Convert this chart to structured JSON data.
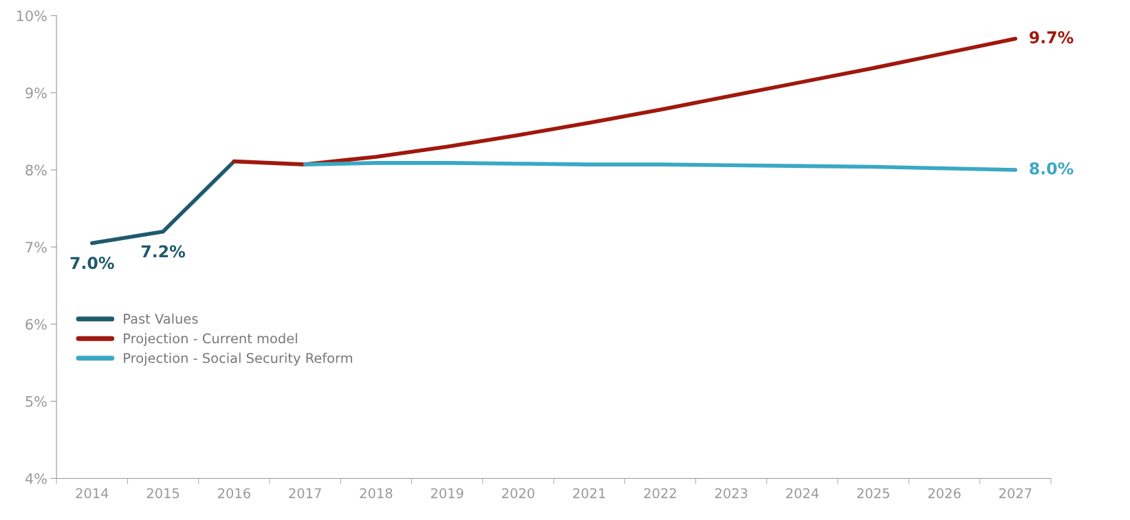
{
  "chart_data": {
    "type": "line",
    "categories": [
      "2014",
      "2015",
      "2016",
      "2017",
      "2018",
      "2019",
      "2020",
      "2021",
      "2022",
      "2023",
      "2024",
      "2025",
      "2026",
      "2027"
    ],
    "series": [
      {
        "name": "Past Values",
        "color": "#1f5a6e",
        "values": [
          7.05,
          7.2,
          8.11,
          null,
          null,
          null,
          null,
          null,
          null,
          null,
          null,
          null,
          null,
          null
        ],
        "value_labels": [
          "7.0%",
          "7.2%",
          null,
          null,
          null,
          null,
          null,
          null,
          null,
          null,
          null,
          null,
          null,
          null
        ]
      },
      {
        "name": "Projection - Current model",
        "color": "#a0180d",
        "values": [
          null,
          null,
          8.11,
          8.07,
          8.17,
          8.3,
          8.45,
          8.61,
          8.78,
          8.96,
          9.14,
          9.32,
          9.51,
          9.7
        ],
        "value_labels": [
          null,
          null,
          null,
          null,
          null,
          null,
          null,
          null,
          null,
          null,
          null,
          null,
          null,
          "9.7%"
        ]
      },
      {
        "name": "Projection - Social Security Reform",
        "color": "#3aa8c4",
        "values": [
          null,
          null,
          null,
          8.07,
          8.09,
          8.09,
          8.08,
          8.07,
          8.07,
          8.06,
          8.05,
          8.04,
          8.02,
          8.0
        ],
        "value_labels": [
          null,
          null,
          null,
          null,
          null,
          null,
          null,
          null,
          null,
          null,
          null,
          null,
          null,
          "8.0%"
        ]
      }
    ],
    "ylim": [
      4,
      10
    ],
    "yticks": [
      {
        "value": 4,
        "label": "4%"
      },
      {
        "value": 5,
        "label": "5%"
      },
      {
        "value": 6,
        "label": "6%"
      },
      {
        "value": 7,
        "label": "7%"
      },
      {
        "value": 8,
        "label": "8%"
      },
      {
        "value": 9,
        "label": "9%"
      },
      {
        "value": 10,
        "label": "10%"
      }
    ],
    "grid": false,
    "legend": "left",
    "marker": "none",
    "line_style": "solid"
  }
}
